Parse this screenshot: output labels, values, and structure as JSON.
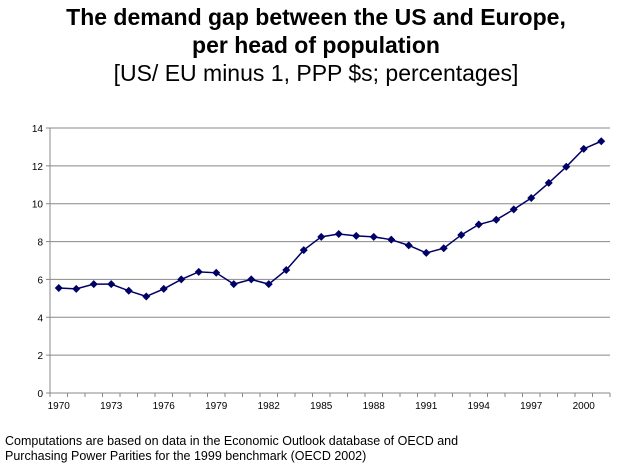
{
  "chart_data": {
    "type": "line",
    "title": "The demand gap between the US and Europe,",
    "title_line2": "per head of population",
    "subtitle": "[US/  EU minus 1, PPP $s; percentages]",
    "xlabel": "",
    "ylabel": "",
    "ylim": [
      0,
      14
    ],
    "yticks": [
      "0",
      "2",
      "4",
      "6",
      "8",
      "10",
      "12",
      "14"
    ],
    "xtick_labels": [
      "1970",
      "1973",
      "1976",
      "1979",
      "1982",
      "1985",
      "1988",
      "1991",
      "1994",
      "1997",
      "2000"
    ],
    "grid": true,
    "legend": "none",
    "line_color": "#000066",
    "x": [
      1970,
      1971,
      1972,
      1973,
      1974,
      1975,
      1976,
      1977,
      1978,
      1979,
      1980,
      1981,
      1982,
      1983,
      1984,
      1985,
      1986,
      1987,
      1988,
      1989,
      1990,
      1991,
      1992,
      1993,
      1994,
      1995,
      1996,
      1997,
      1998,
      1999,
      2000,
      2001
    ],
    "series": [
      {
        "values": [
          5.55,
          5.5,
          5.75,
          5.75,
          5.4,
          5.1,
          5.5,
          6.0,
          6.4,
          6.35,
          5.75,
          6.0,
          5.75,
          6.5,
          7.55,
          8.25,
          8.4,
          8.3,
          8.25,
          8.1,
          7.8,
          7.4,
          7.65,
          8.35,
          8.9,
          9.15,
          9.7,
          10.3,
          11.1,
          11.95,
          12.9,
          13.3
        ]
      }
    ]
  },
  "footnote": {
    "line1": "Computations are based on data in the Economic Outlook database of OECD and",
    "line2": "Purchasing Power Parities for the 1999 benchmark (OECD 2002)"
  }
}
